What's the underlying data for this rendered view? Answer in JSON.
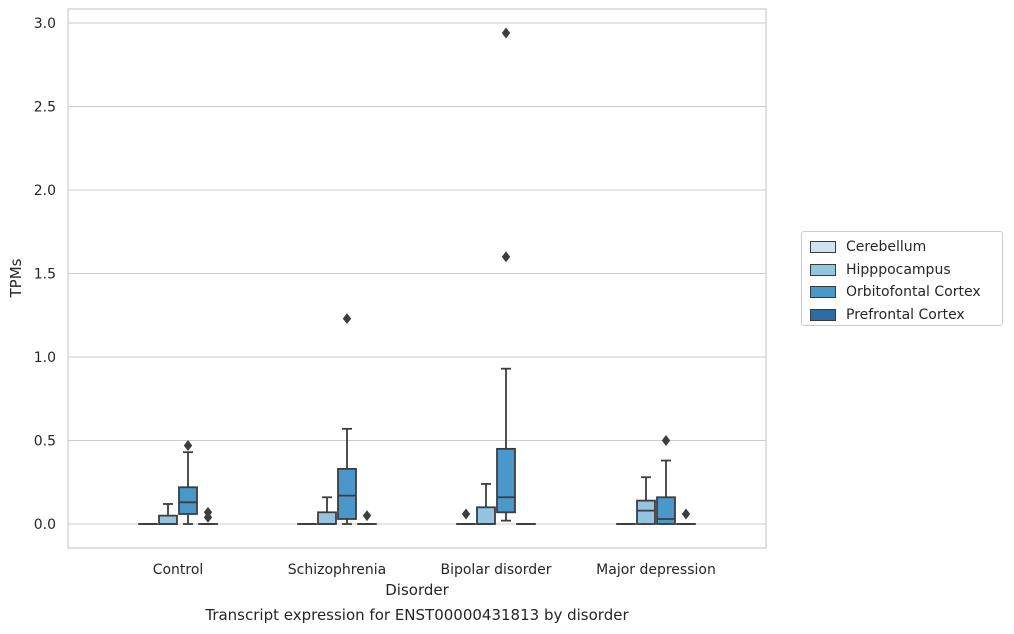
{
  "chart_data": {
    "type": "box",
    "xlabel": "Disorder",
    "ylabel": "TPMs",
    "ylim": [
      -0.14,
      3.08
    ],
    "yticks": [
      0.0,
      0.5,
      1.0,
      1.5,
      2.0,
      2.5,
      3.0
    ],
    "ytick_labels": [
      "0.0",
      "0.5",
      "1.0",
      "1.5",
      "2.0",
      "2.5",
      "3.0"
    ],
    "grid": true,
    "legend_position": "right",
    "categories": [
      "Control",
      "Schizophrenia",
      "Bipolar disorder",
      "Major depression"
    ],
    "series": [
      {
        "name": "Cerebellum",
        "color": "#d0e1f2",
        "boxes": [
          {
            "q1": 0,
            "median": 0,
            "q3": 0,
            "whislo": 0,
            "whishi": 0,
            "fliers": []
          },
          {
            "q1": 0,
            "median": 0,
            "q3": 0,
            "whislo": 0,
            "whishi": 0,
            "fliers": []
          },
          {
            "q1": 0,
            "median": 0,
            "q3": 0,
            "whislo": 0,
            "whishi": 0,
            "fliers": [
              0.06
            ]
          },
          {
            "q1": 0,
            "median": 0,
            "q3": 0,
            "whislo": 0,
            "whishi": 0,
            "fliers": []
          }
        ]
      },
      {
        "name": "Hipppocampus",
        "color": "#94c4df",
        "boxes": [
          {
            "q1": 0,
            "median": 0,
            "q3": 0.05,
            "whislo": 0,
            "whishi": 0.12,
            "fliers": []
          },
          {
            "q1": 0,
            "median": 0,
            "q3": 0.07,
            "whislo": 0,
            "whishi": 0.16,
            "fliers": []
          },
          {
            "q1": 0,
            "median": 0,
            "q3": 0.1,
            "whislo": 0,
            "whishi": 0.24,
            "fliers": []
          },
          {
            "q1": 0,
            "median": 0.08,
            "q3": 0.14,
            "whislo": 0,
            "whishi": 0.28,
            "fliers": []
          }
        ]
      },
      {
        "name": "Orbitofontal Cortex",
        "color": "#4a98c9",
        "boxes": [
          {
            "q1": 0.06,
            "median": 0.13,
            "q3": 0.22,
            "whislo": 0,
            "whishi": 0.43,
            "fliers": [
              0.47
            ]
          },
          {
            "q1": 0.03,
            "median": 0.17,
            "q3": 0.33,
            "whislo": 0,
            "whishi": 0.57,
            "fliers": [
              1.23
            ]
          },
          {
            "q1": 0.07,
            "median": 0.16,
            "q3": 0.45,
            "whislo": 0.02,
            "whishi": 0.93,
            "fliers": [
              1.6,
              2.94
            ]
          },
          {
            "q1": 0,
            "median": 0.03,
            "q3": 0.16,
            "whislo": 0,
            "whishi": 0.38,
            "fliers": [
              0.5
            ]
          }
        ]
      },
      {
        "name": "Prefrontal Cortex",
        "color": "#2e6da4",
        "boxes": [
          {
            "q1": 0,
            "median": 0,
            "q3": 0,
            "whislo": 0,
            "whishi": 0,
            "fliers": [
              0.04,
              0.07
            ]
          },
          {
            "q1": 0,
            "median": 0,
            "q3": 0,
            "whislo": 0,
            "whishi": 0,
            "fliers": [
              0.05
            ]
          },
          {
            "q1": 0,
            "median": 0,
            "q3": 0,
            "whislo": 0,
            "whishi": 0,
            "fliers": []
          },
          {
            "q1": 0,
            "median": 0,
            "q3": 0,
            "whislo": 0,
            "whishi": 0,
            "fliers": [
              0.06
            ]
          }
        ]
      }
    ],
    "caption": "Transcript expression for ENST00000431813 by disorder"
  }
}
